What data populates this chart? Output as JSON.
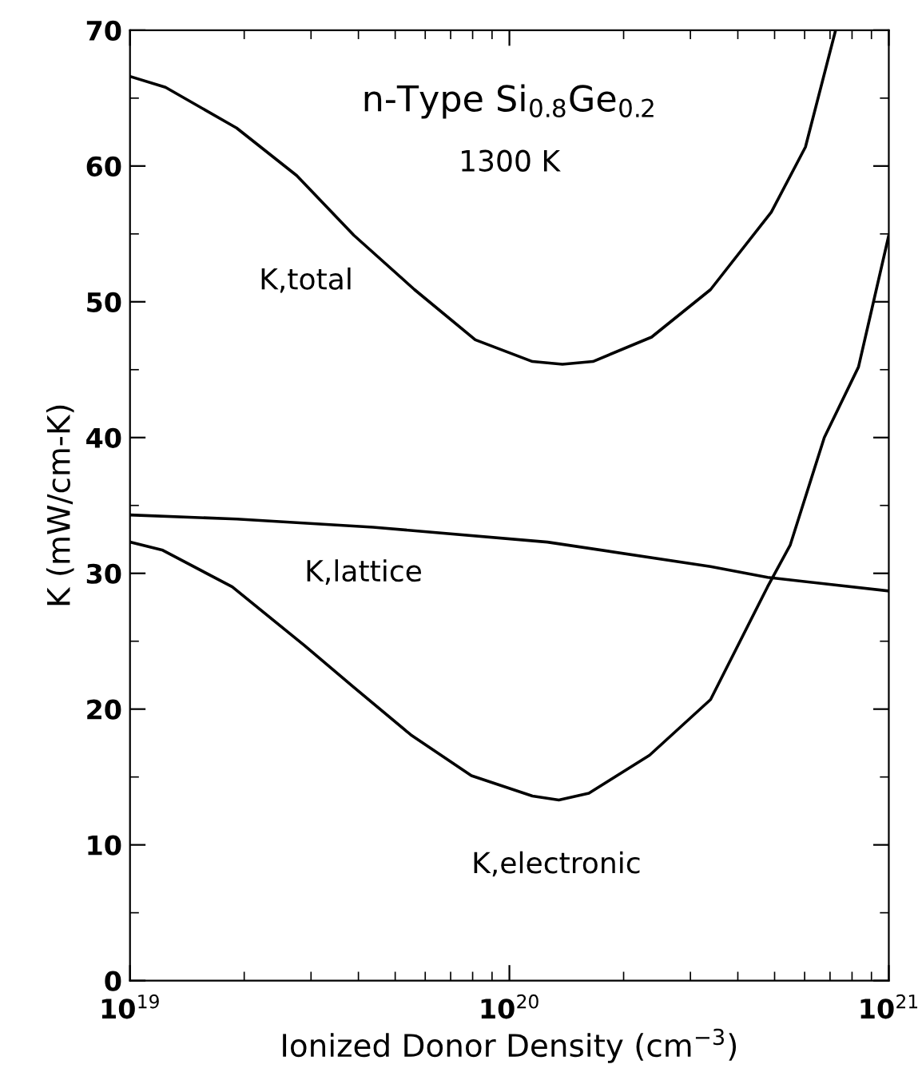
{
  "chart_data": {
    "type": "line",
    "title": "n-Type Si$_{0.8}$Ge$_{0.2}$",
    "subtitle": "1300 K",
    "xlabel": "Ionized Donor Density (cm$^{−3}$)",
    "ylabel": "K (mW/cm-K)",
    "log": "x",
    "xlim": [
      1e+19,
      1e+21
    ],
    "ylim": [
      0,
      70
    ],
    "xticks": [
      {
        "value": 1e+19,
        "label": "10$^{19}$"
      },
      {
        "value": 1e+20,
        "label": "10$^{20}$"
      },
      {
        "value": 1e+21,
        "label": "10$^{21}$"
      }
    ],
    "yticks": [
      0,
      10,
      20,
      30,
      40,
      50,
      60,
      70
    ],
    "grid": false,
    "legend": false,
    "marker": "none",
    "line_style": "solid",
    "series": [
      {
        "name": "K,total",
        "color": "#000000",
        "x": [
          1e+19,
          1.24e+19,
          1.91e+19,
          2.75e+19,
          3.89e+19,
          5.62e+19,
          8.13e+19,
          1.15e+20,
          1.38e+20,
          1.66e+20,
          2.37e+20,
          3.39e+20,
          4.9e+20,
          6.03e+20,
          7.24e+20
        ],
        "values": [
          66.6,
          65.8,
          62.8,
          59.3,
          54.9,
          50.9,
          47.2,
          45.6,
          45.4,
          45.6,
          47.4,
          50.9,
          56.6,
          61.4,
          70
        ]
      },
      {
        "name": "K,lattice",
        "color": "#000000",
        "x": [
          1e+19,
          1.91e+19,
          4.37e+19,
          1.26e+20,
          3.39e+20,
          4.79e+20,
          1e+21
        ],
        "values": [
          34.3,
          34.0,
          33.4,
          32.3,
          30.5,
          29.7,
          28.7
        ]
      },
      {
        "name": "K,electronic",
        "color": "#000000",
        "x": [
          1e+19,
          1.22e+19,
          1.86e+19,
          2.88e+19,
          3.89e+19,
          5.5e+19,
          7.94e+19,
          1.15e+20,
          1.35e+20,
          1.62e+20,
          2.34e+20,
          3.39e+20,
          4.79e+20,
          5.5e+20,
          6.76e+20,
          8.32e+20,
          1e+21
        ],
        "values": [
          32.3,
          31.7,
          29.0,
          24.7,
          21.6,
          18.1,
          15.1,
          13.6,
          13.3,
          13.8,
          16.6,
          20.7,
          29.0,
          32.1,
          40.0,
          45.2,
          54.9
        ]
      }
    ]
  }
}
